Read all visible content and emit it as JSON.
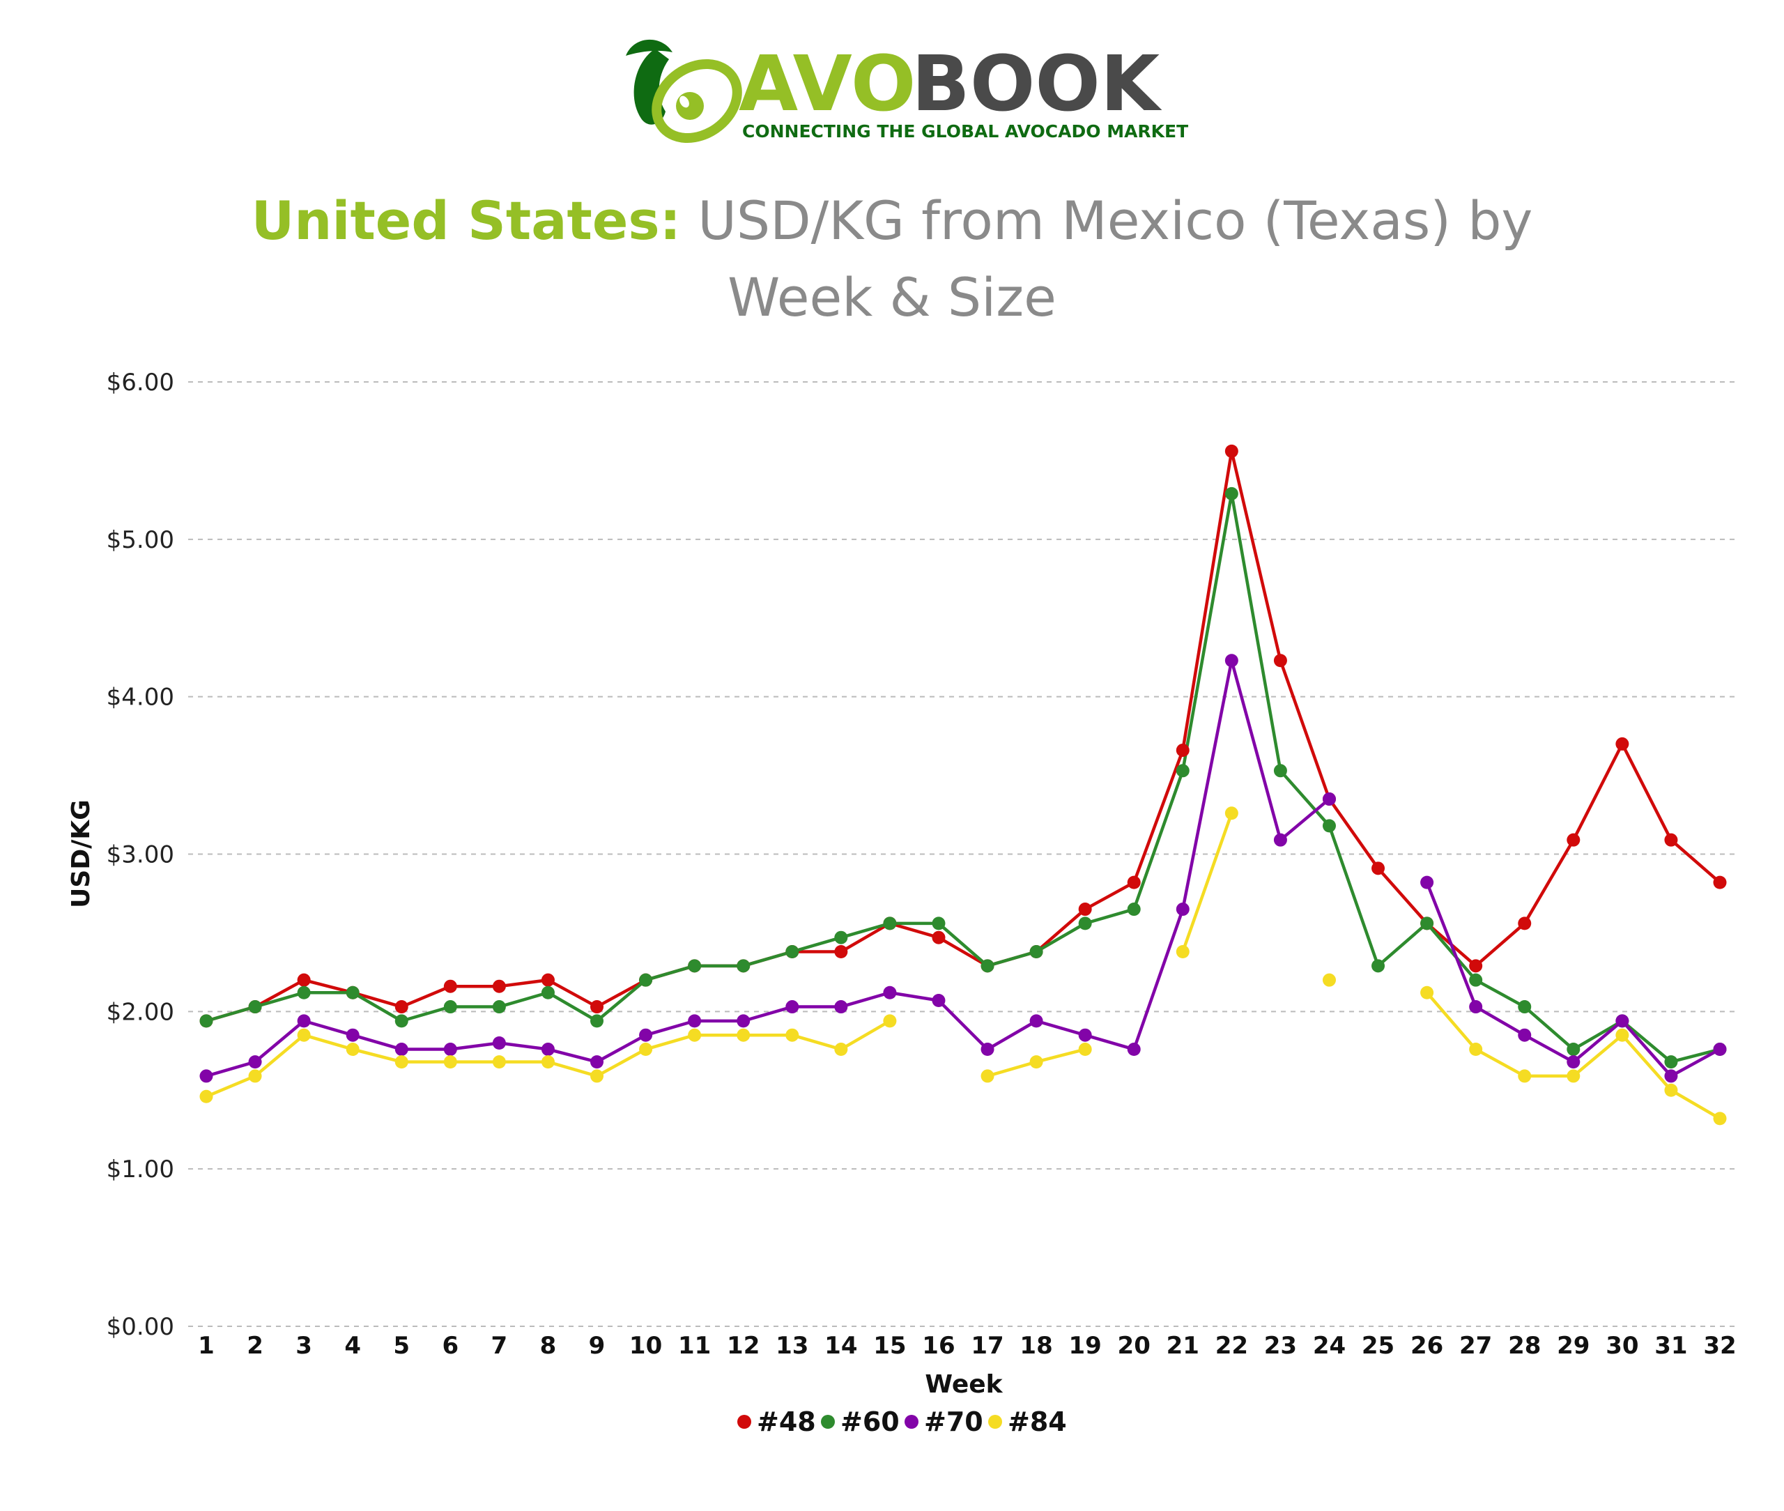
{
  "logo": {
    "brand_part1": "AVO",
    "brand_part2": "BOOK",
    "tagline": "CONNECTING THE GLOBAL AVOCADO MARKET",
    "icon": "avocado-leaf-icon"
  },
  "title": {
    "highlight": "United States:",
    "rest_line1": "USD/KG from Mexico (Texas) by",
    "line2": "Week & Size"
  },
  "colors": {
    "#48": "#d10a0a",
    "#60": "#2e8b2e",
    "#70": "#8204a8",
    "#84": "#f5dc23",
    "brand_green": "#95bf26",
    "brand_dark": "#4a4a4a",
    "grid": "#bbbbbb"
  },
  "chart_data": {
    "type": "line",
    "xlabel": "Week",
    "ylabel": "USD/KG",
    "ylim": [
      0,
      6
    ],
    "yticks": [
      "$0.00",
      "$1.00",
      "$2.00",
      "$3.00",
      "$4.00",
      "$5.00",
      "$6.00"
    ],
    "grid": "horizontal dashed",
    "legend_position": "bottom-center",
    "x": [
      1,
      2,
      3,
      4,
      5,
      6,
      7,
      8,
      9,
      10,
      11,
      12,
      13,
      14,
      15,
      16,
      17,
      18,
      19,
      20,
      21,
      22,
      23,
      24,
      25,
      26,
      27,
      28,
      29,
      30,
      31,
      32
    ],
    "series": [
      {
        "name": "#48",
        "values": [
          1.94,
          2.03,
          2.2,
          2.12,
          2.03,
          2.16,
          2.16,
          2.2,
          2.03,
          2.2,
          2.29,
          2.29,
          2.38,
          2.38,
          2.56,
          2.47,
          2.29,
          2.38,
          2.65,
          2.82,
          3.66,
          5.56,
          4.23,
          3.35,
          2.91,
          2.56,
          2.29,
          2.56,
          3.09,
          3.7,
          3.09,
          2.82
        ]
      },
      {
        "name": "#60",
        "values": [
          1.94,
          2.03,
          2.12,
          2.12,
          1.94,
          2.03,
          2.03,
          2.12,
          1.94,
          2.2,
          2.29,
          2.29,
          2.38,
          2.47,
          2.56,
          2.56,
          2.29,
          2.38,
          2.56,
          2.65,
          3.53,
          5.29,
          3.53,
          3.18,
          2.29,
          2.56,
          2.2,
          2.03,
          1.76,
          1.94,
          1.68,
          1.76
        ]
      },
      {
        "name": "#70",
        "values": [
          1.59,
          1.68,
          1.94,
          1.85,
          1.76,
          1.76,
          1.8,
          1.76,
          1.68,
          1.85,
          1.94,
          1.94,
          2.03,
          2.03,
          2.12,
          2.07,
          1.76,
          1.94,
          1.85,
          1.76,
          2.65,
          4.23,
          3.09,
          3.35,
          null,
          2.82,
          2.03,
          1.85,
          1.68,
          1.94,
          1.59,
          1.76
        ]
      },
      {
        "name": "#84",
        "values": [
          1.46,
          1.59,
          1.85,
          1.76,
          1.68,
          1.68,
          1.68,
          1.68,
          1.59,
          1.76,
          1.85,
          1.85,
          1.85,
          1.76,
          1.94,
          null,
          1.59,
          1.68,
          1.76,
          null,
          2.38,
          3.26,
          null,
          2.2,
          null,
          2.12,
          1.76,
          1.59,
          1.59,
          1.85,
          1.5,
          1.32
        ]
      }
    ]
  }
}
